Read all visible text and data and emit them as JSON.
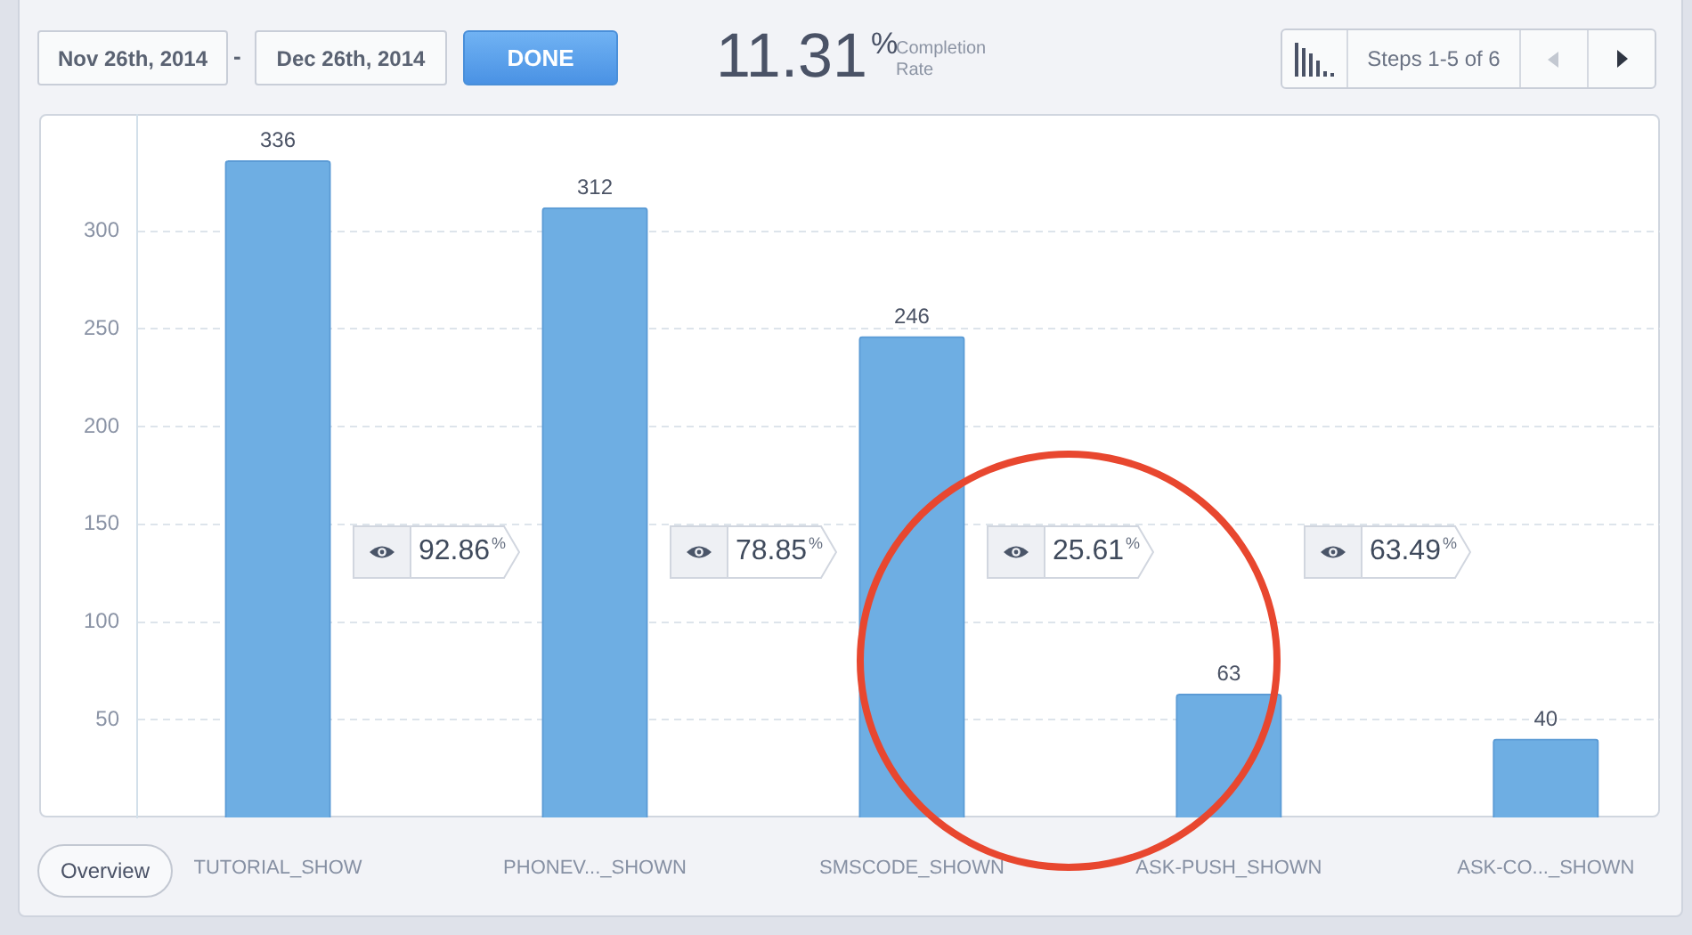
{
  "chart_data": {
    "type": "bar",
    "title": "11.31$^{%}$",
    "subtitle": "Completion Rate",
    "categories": [
      "TUTORIAL_SHOW",
      "PHONEV..._SHOWN",
      "SMSCODE_SHOWN",
      "ASK-PUSH_SHOWN",
      "ASK-CO..._SHOWN"
    ],
    "values": [
      336,
      312,
      246,
      63,
      40
    ],
    "color": "#6eaee3",
    "ylim": [
      0,
      360
    ],
    "yticks": [
      50,
      100,
      150,
      200,
      250,
      300
    ],
    "grid": "y",
    "data_labels": true,
    "annotations": [
      "Nov 26th, 2014",
      "-",
      "Dec 26th, 2014",
      "DONE",
      "Steps 1-5 of 6",
      "Overview",
      "92.86$^{%}$",
      "78.85$^{%}$",
      "25.61$^{%}$",
      "63.49$^{%}$"
    ]
  }
}
